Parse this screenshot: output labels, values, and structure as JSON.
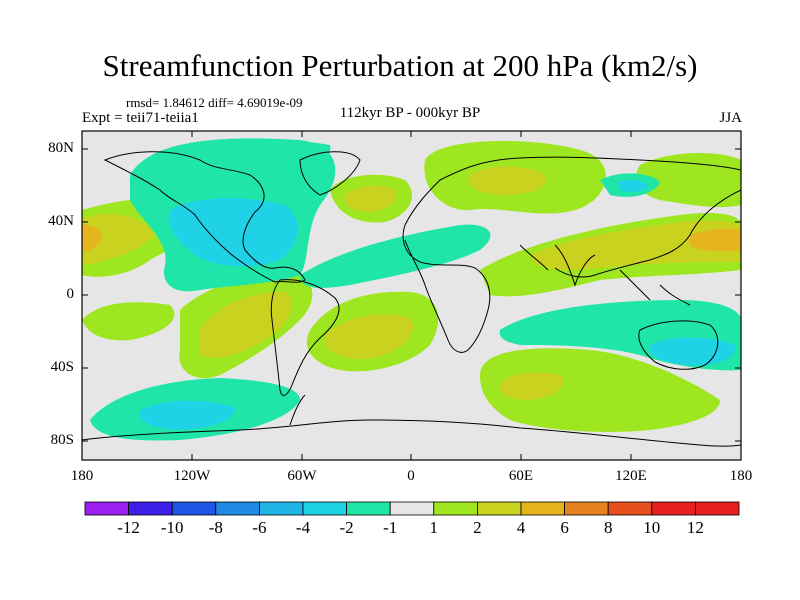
{
  "figure": {
    "title": "Streamfunction Perturbation at 200 hPa (km2/s)",
    "stats": "rmsd= 1.84612 diff= 4.69019e-09",
    "experiment": "Expt = teii71-teiia1",
    "period": "112kyr BP - 000kyr BP",
    "season": "JJA"
  },
  "axes": {
    "lat_labels": [
      "80N",
      "40N",
      "0",
      "40S",
      "80S"
    ],
    "lon_labels": [
      "180",
      "120W",
      "60W",
      "0",
      "60E",
      "120E",
      "180"
    ]
  },
  "colorbar": {
    "labels": [
      "-12",
      "-10",
      "-8",
      "-6",
      "-4",
      "-2",
      "-1",
      "1",
      "2",
      "4",
      "6",
      "8",
      "10",
      "12"
    ],
    "colors": [
      "#9a1ff0",
      "#3c1fe6",
      "#1f55e6",
      "#1f8ae6",
      "#1fb4e6",
      "#1fd2e6",
      "#1fe6a8",
      "#e6e6e6",
      "#9ee61f",
      "#c8d21f",
      "#e6b41f",
      "#e6821f",
      "#e6501f",
      "#e61f1f"
    ]
  },
  "chart_data": {
    "type": "contour-map",
    "title": "Streamfunction Perturbation at 200 hPa (km2/s)",
    "variable": "streamfunction perturbation",
    "units": "km2/s",
    "level": "200 hPa",
    "season": "JJA",
    "xlim": [
      -180,
      180
    ],
    "ylim": [
      -90,
      90
    ],
    "contour_levels": [
      -12,
      -10,
      -8,
      -6,
      -4,
      -2,
      -1,
      1,
      2,
      4,
      6,
      8,
      10,
      12
    ]
  }
}
